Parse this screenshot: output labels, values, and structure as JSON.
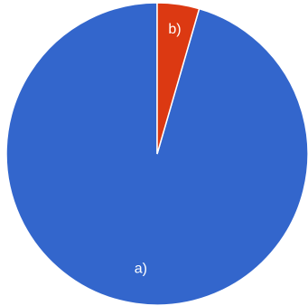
{
  "chart_data": {
    "type": "pie",
    "start_angle_deg": 0,
    "direction": "counterclockwise",
    "slices": [
      {
        "label": "a)",
        "value": 95.5,
        "color": "#3366CC"
      },
      {
        "label": "b)",
        "value": 4.5,
        "color": "#DC3912"
      }
    ],
    "slice_border_color": "#ffffff"
  }
}
